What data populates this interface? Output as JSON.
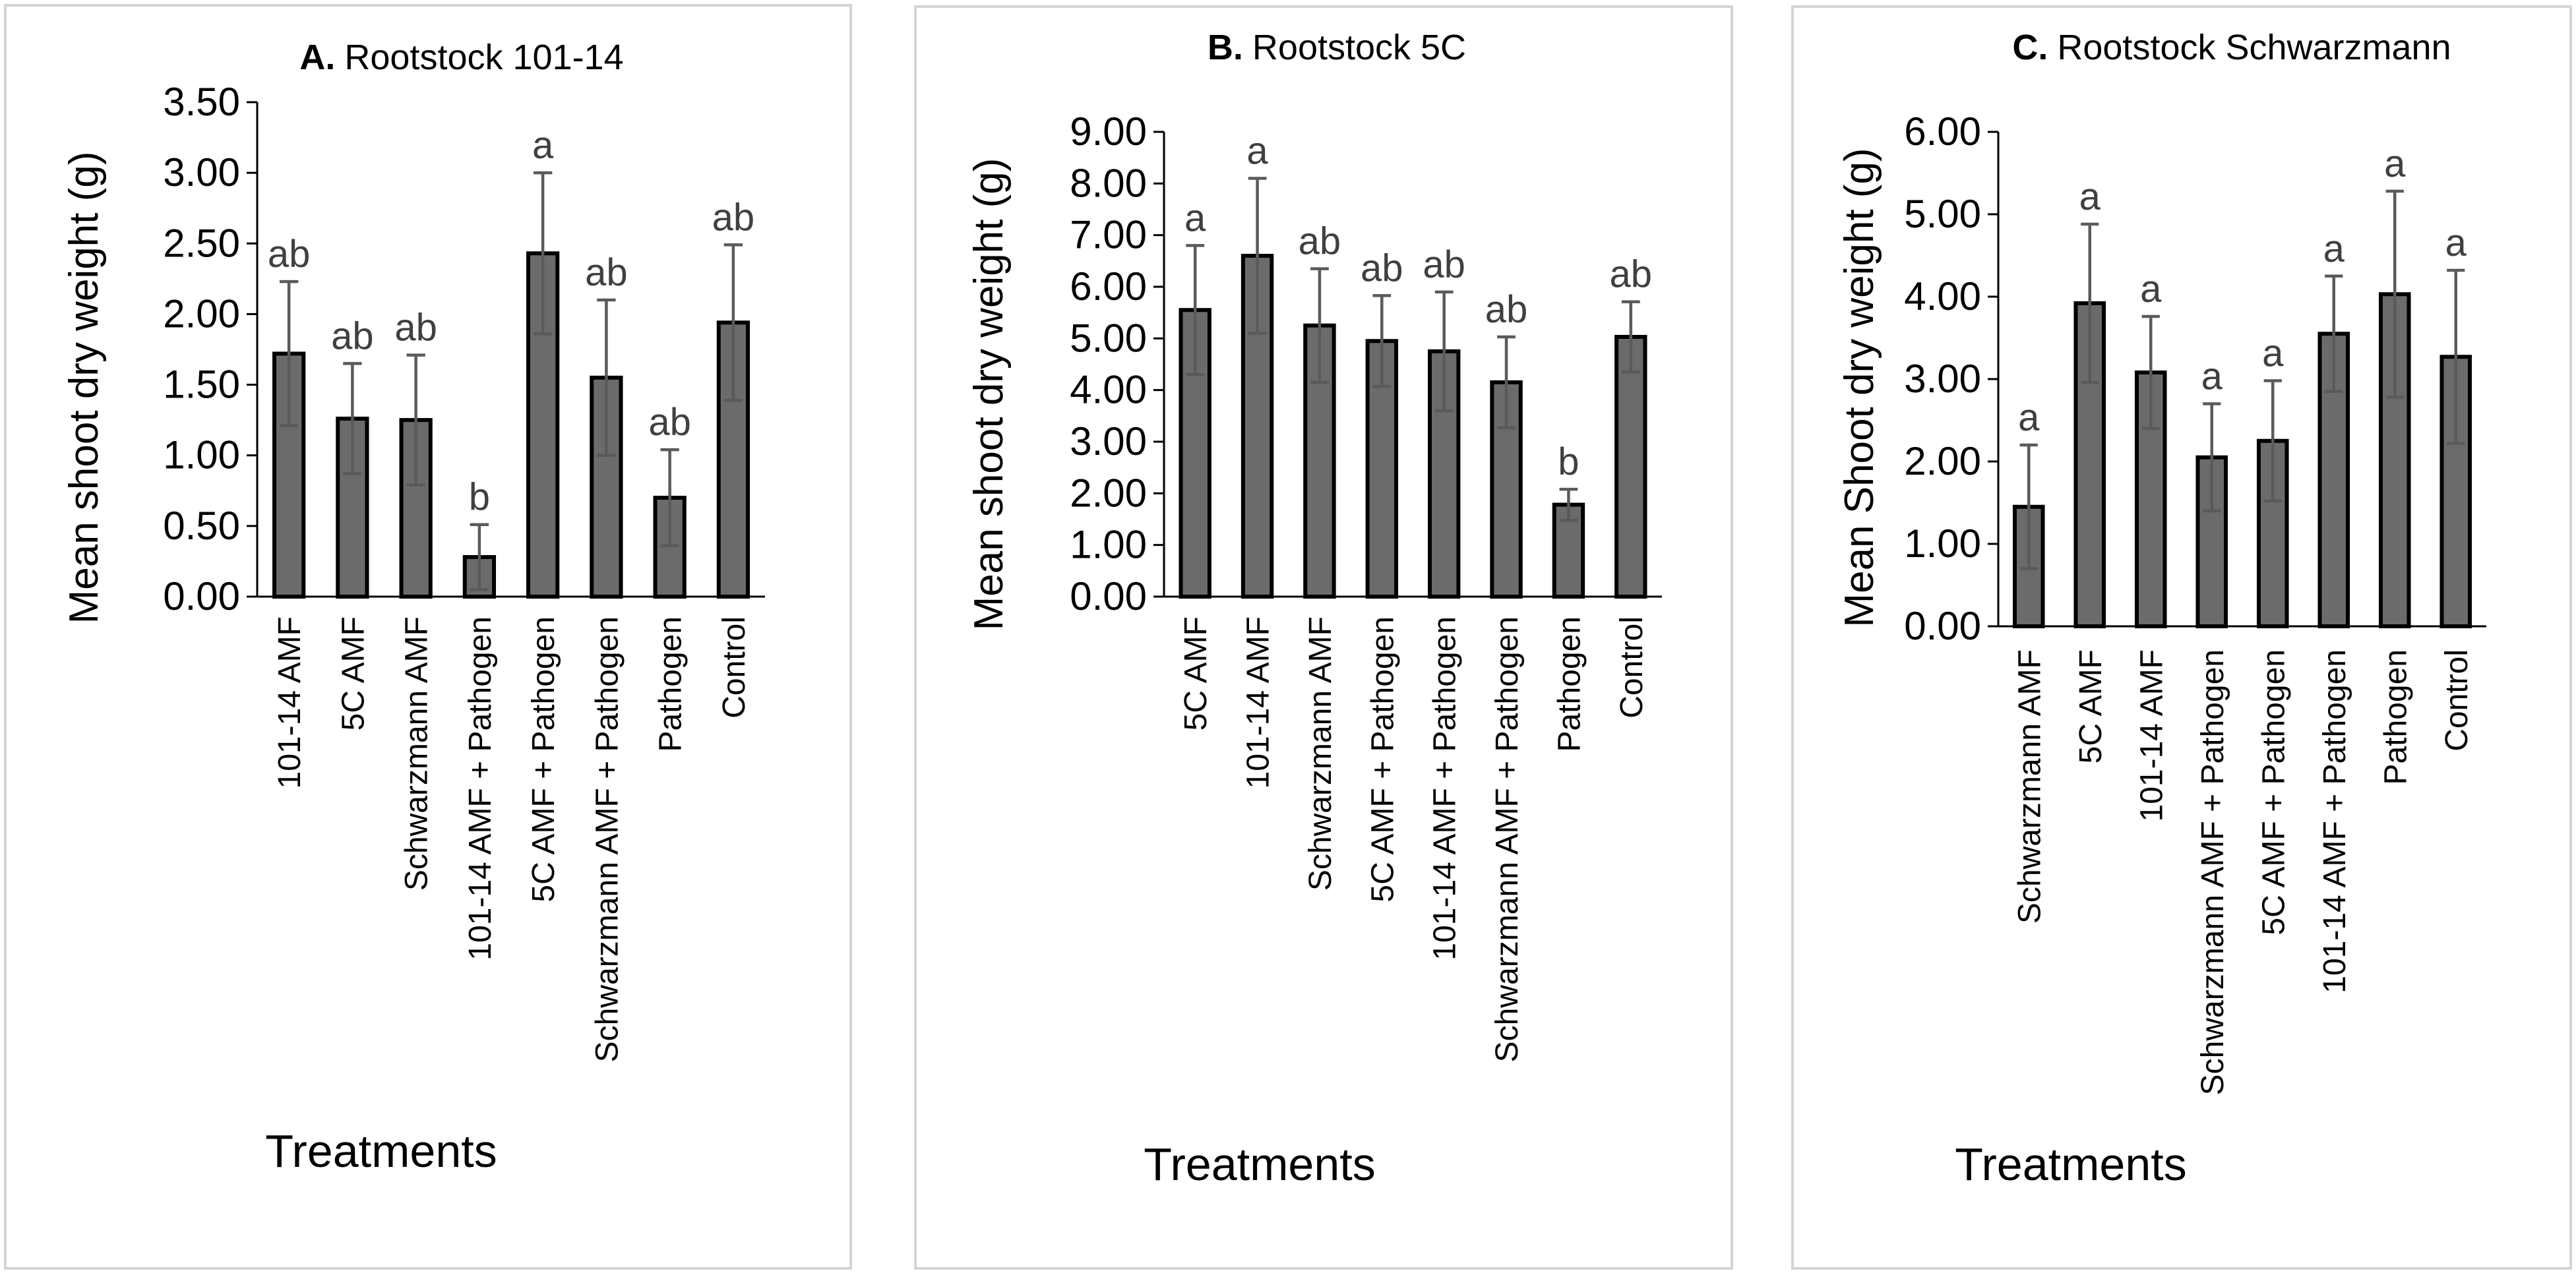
{
  "chart_data": [
    {
      "type": "bar",
      "title_prefix": "A.",
      "title": "Rootstock 101-14",
      "xlabel": "Treatments",
      "ylabel": "Mean shoot dry weight (g)",
      "ylim": [
        0,
        3.5
      ],
      "ytick_step": 0.5,
      "ytick_labels": [
        "0.00",
        "0.50",
        "1.00",
        "1.50",
        "2.00",
        "2.50",
        "3.00",
        "3.50"
      ],
      "categories": [
        "101-14 AMF",
        "5C AMF",
        "Schwarzmann AMF",
        "101-14 AMF + Pathogen",
        "5C AMF + Pathogen",
        "Schwarzmann AMF + Pathogen",
        "Pathogen",
        "Control"
      ],
      "values": [
        1.72,
        1.26,
        1.25,
        0.28,
        2.43,
        1.55,
        0.7,
        1.94
      ],
      "errors": [
        0.51,
        0.39,
        0.46,
        0.23,
        0.57,
        0.55,
        0.34,
        0.55
      ],
      "significance": [
        "ab",
        "ab",
        "ab",
        "b",
        "a",
        "ab",
        "ab",
        "ab"
      ]
    },
    {
      "type": "bar",
      "title_prefix": "B.",
      "title": "Rootstock 5C",
      "xlabel": "Treatments",
      "ylabel": "Mean shoot dry weight (g)",
      "ylim": [
        0,
        9
      ],
      "ytick_step": 1,
      "ytick_labels": [
        "0.00",
        "1.00",
        "2.00",
        "3.00",
        "4.00",
        "5.00",
        "6.00",
        "7.00",
        "8.00",
        "9.00"
      ],
      "categories": [
        "5C AMF",
        "101-14 AMF",
        "Schwarzmann AMF",
        "5C AMF + Pathogen",
        "101-14 AMF + Pathogen",
        "Schwarzmann AMF + Pathogen",
        "Pathogen",
        "Control"
      ],
      "values": [
        5.55,
        6.6,
        5.25,
        4.95,
        4.75,
        4.15,
        1.78,
        5.03
      ],
      "errors": [
        1.25,
        1.5,
        1.1,
        0.88,
        1.15,
        0.88,
        0.3,
        0.68
      ],
      "significance": [
        "a",
        "a",
        "ab",
        "ab",
        "ab",
        "ab",
        "b",
        "ab"
      ]
    },
    {
      "type": "bar",
      "title_prefix": "C.",
      "title": "Rootstock Schwarzmann",
      "xlabel": "Treatments",
      "ylabel": "Mean Shoot dry weight (g)",
      "ylim": [
        0,
        6
      ],
      "ytick_step": 1,
      "ytick_labels": [
        "0.00",
        "1.00",
        "2.00",
        "3.00",
        "4.00",
        "5.00",
        "6.00"
      ],
      "categories": [
        "Schwarzmann AMF",
        "5C AMF",
        "101-14 AMF",
        "Schwarzmann AMF + Pathogen",
        "5C AMF + Pathogen",
        "101-14 AMF + Pathogen",
        "Pathogen",
        "Control"
      ],
      "values": [
        1.45,
        3.92,
        3.08,
        2.05,
        2.25,
        3.55,
        4.03,
        3.27
      ],
      "errors": [
        0.75,
        0.96,
        0.68,
        0.65,
        0.73,
        0.7,
        1.25,
        1.05
      ],
      "significance": [
        "a",
        "a",
        "a",
        "a",
        "a",
        "a",
        "a",
        "a"
      ]
    }
  ]
}
